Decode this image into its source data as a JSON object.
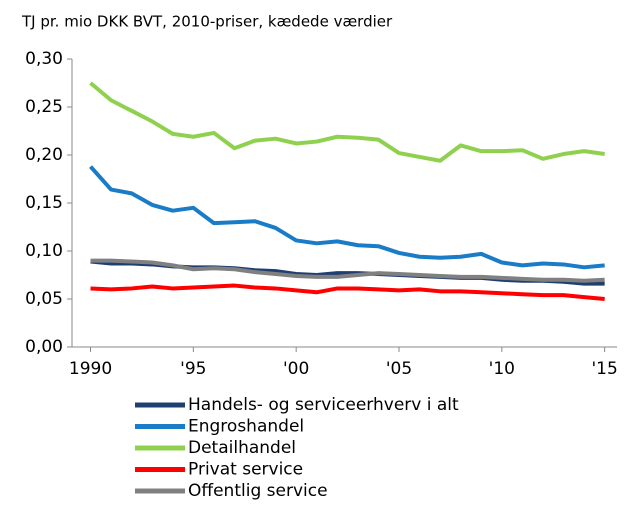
{
  "chart_data": {
    "type": "line",
    "title": "TJ pr. mio DKK BVT, 2010-priser, kædede værdier",
    "x": [
      1990,
      1991,
      1992,
      1993,
      1994,
      1995,
      1996,
      1997,
      1998,
      1999,
      2000,
      2001,
      2002,
      2003,
      2004,
      2005,
      2006,
      2007,
      2008,
      2009,
      2010,
      2011,
      2012,
      2013,
      2014,
      2015
    ],
    "series": [
      {
        "name": "Handels- og serviceerhverv i alt",
        "color": "#1f3f73",
        "values": [
          0.089,
          0.087,
          0.087,
          0.086,
          0.084,
          0.083,
          0.083,
          0.082,
          0.08,
          0.079,
          0.076,
          0.075,
          0.077,
          0.077,
          0.076,
          0.075,
          0.074,
          0.073,
          0.072,
          0.072,
          0.07,
          0.069,
          0.069,
          0.068,
          0.066,
          0.066
        ]
      },
      {
        "name": "Engroshandel",
        "color": "#1a7cc7",
        "values": [
          0.188,
          0.164,
          0.16,
          0.148,
          0.142,
          0.145,
          0.129,
          0.13,
          0.131,
          0.124,
          0.111,
          0.108,
          0.11,
          0.106,
          0.105,
          0.098,
          0.094,
          0.093,
          0.094,
          0.097,
          0.088,
          0.085,
          0.087,
          0.086,
          0.083,
          0.085
        ]
      },
      {
        "name": "Detailhandel",
        "color": "#8fd14f",
        "values": [
          0.275,
          0.257,
          0.246,
          0.235,
          0.222,
          0.219,
          0.223,
          0.207,
          0.215,
          0.217,
          0.212,
          0.214,
          0.219,
          0.218,
          0.216,
          0.202,
          0.198,
          0.194,
          0.21,
          0.204,
          0.204,
          0.205,
          0.196,
          0.201,
          0.204,
          0.201
        ]
      },
      {
        "name": "Privat service",
        "color": "#ff0000",
        "values": [
          0.061,
          0.06,
          0.061,
          0.063,
          0.061,
          0.062,
          0.063,
          0.064,
          0.062,
          0.061,
          0.059,
          0.057,
          0.061,
          0.061,
          0.06,
          0.059,
          0.06,
          0.058,
          0.058,
          0.057,
          0.056,
          0.055,
          0.054,
          0.054,
          0.052,
          0.05
        ]
      },
      {
        "name": "Offentlig service",
        "color": "#808080",
        "values": [
          0.09,
          0.09,
          0.089,
          0.088,
          0.085,
          0.081,
          0.082,
          0.081,
          0.078,
          0.076,
          0.074,
          0.073,
          0.073,
          0.075,
          0.077,
          0.076,
          0.075,
          0.074,
          0.073,
          0.073,
          0.072,
          0.071,
          0.07,
          0.07,
          0.069,
          0.07
        ]
      }
    ],
    "xlim": [
      1989.1,
      2015.6
    ],
    "xticks": [
      1990,
      {
        "value": 1995,
        "label": "'95"
      },
      {
        "value": 2000,
        "label": "'00"
      },
      {
        "value": 2005,
        "label": "'05"
      },
      {
        "value": 2010,
        "label": "'10"
      },
      {
        "value": 2015,
        "label": "'15"
      }
    ],
    "ylim": [
      0,
      0.3
    ],
    "yticks": [
      {
        "value": 0,
        "label": "0,00"
      },
      {
        "value": 0.05,
        "label": "0,05"
      },
      {
        "value": 0.1,
        "label": "0,10"
      },
      {
        "value": 0.15,
        "label": "0,15"
      },
      {
        "value": 0.2,
        "label": "0,20"
      },
      {
        "value": 0.25,
        "label": "0,25"
      },
      {
        "value": 0.3,
        "label": "0,30"
      }
    ],
    "grid": false,
    "legend": "bottom"
  }
}
